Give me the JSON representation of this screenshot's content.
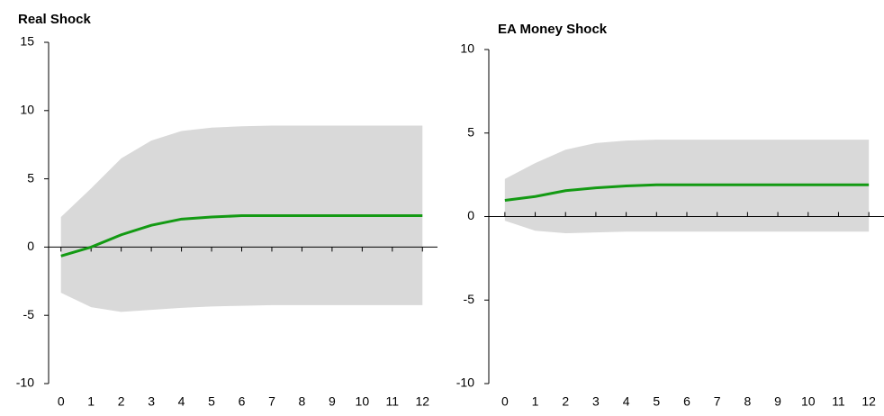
{
  "chart_data": [
    {
      "type": "line",
      "title": "Real Shock",
      "x": [
        0,
        1,
        2,
        3,
        4,
        5,
        6,
        7,
        8,
        9,
        10,
        11,
        12
      ],
      "xlim": [
        -0.5,
        12.5
      ],
      "xticks": [
        0,
        1,
        2,
        3,
        4,
        5,
        6,
        7,
        8,
        9,
        10,
        11,
        12
      ],
      "ylim": [
        -10,
        15
      ],
      "yticks": [
        -10,
        -5,
        0,
        5,
        10,
        15
      ],
      "band": {
        "color": "#d9d9d9",
        "upper": [
          2.2,
          4.3,
          6.5,
          7.8,
          8.5,
          8.75,
          8.85,
          8.9,
          8.9,
          8.9,
          8.9,
          8.9,
          8.9
        ],
        "lower": [
          -3.35,
          -4.4,
          -4.75,
          -4.6,
          -4.45,
          -4.35,
          -4.3,
          -4.25,
          -4.25,
          -4.25,
          -4.25,
          -4.25,
          -4.25
        ]
      },
      "series": [
        {
          "color": "#139a13",
          "values": [
            -0.65,
            0,
            0.9,
            1.6,
            2.05,
            2.2,
            2.3,
            2.3,
            2.3,
            2.3,
            2.3,
            2.3,
            2.3
          ]
        }
      ]
    },
    {
      "type": "line",
      "title": "EA Money Shock",
      "x": [
        0,
        1,
        2,
        3,
        4,
        5,
        6,
        7,
        8,
        9,
        10,
        11,
        12
      ],
      "xlim": [
        -0.5,
        12.5
      ],
      "xticks": [
        0,
        1,
        2,
        3,
        4,
        5,
        6,
        7,
        8,
        9,
        10,
        11,
        12
      ],
      "ylim": [
        -10,
        10
      ],
      "yticks": [
        -10,
        -5,
        0,
        5,
        10
      ],
      "band": {
        "color": "#d9d9d9",
        "upper": [
          2.25,
          3.2,
          4.0,
          4.4,
          4.55,
          4.6,
          4.6,
          4.6,
          4.6,
          4.6,
          4.6,
          4.6,
          4.6
        ],
        "lower": [
          -0.25,
          -0.85,
          -1.0,
          -0.95,
          -0.9,
          -0.9,
          -0.9,
          -0.9,
          -0.9,
          -0.9,
          -0.9,
          -0.9,
          -0.9
        ]
      },
      "series": [
        {
          "color": "#139a13",
          "values": [
            0.97,
            1.2,
            1.55,
            1.72,
            1.83,
            1.9,
            1.9,
            1.9,
            1.9,
            1.9,
            1.9,
            1.9,
            1.9
          ]
        }
      ]
    }
  ]
}
